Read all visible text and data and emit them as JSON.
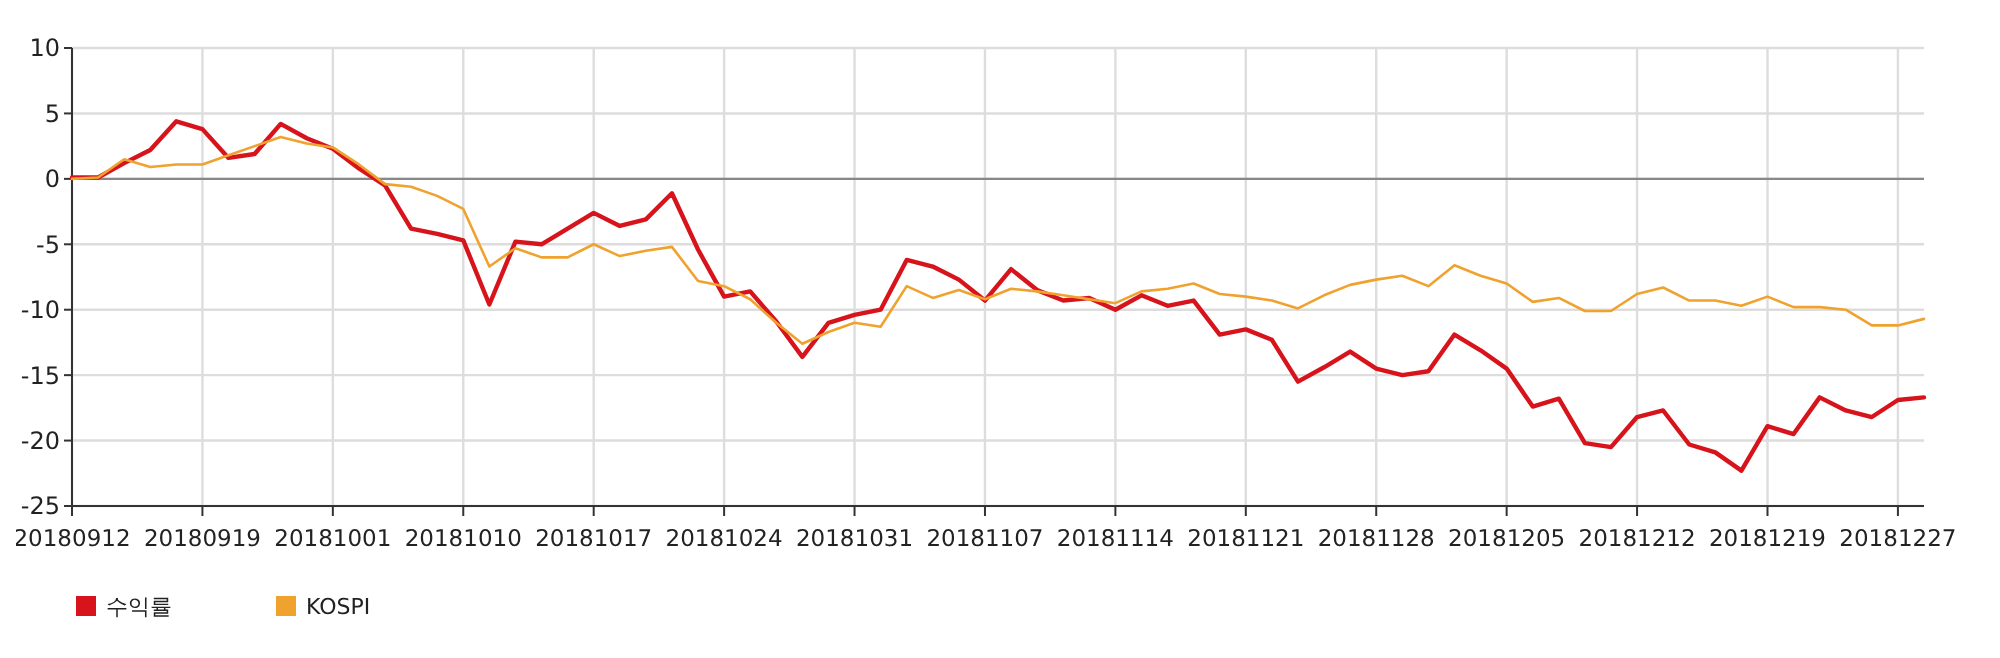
{
  "chart_data": {
    "type": "line",
    "categories": [
      "20180912",
      null,
      null,
      null,
      null,
      "20180919",
      null,
      null,
      null,
      null,
      "20181001",
      null,
      null,
      null,
      null,
      "20181010",
      null,
      null,
      null,
      null,
      "20181017",
      null,
      null,
      null,
      null,
      "20181024",
      null,
      null,
      null,
      null,
      "20181031",
      null,
      null,
      null,
      null,
      "20181107",
      null,
      null,
      null,
      null,
      "20181114",
      null,
      null,
      null,
      null,
      "20181121",
      null,
      null,
      null,
      null,
      "20181128",
      null,
      null,
      null,
      null,
      "20181205",
      null,
      null,
      null,
      null,
      "20181212",
      null,
      null,
      null,
      null,
      "20181219",
      null,
      null,
      null,
      null,
      "20181227",
      null
    ],
    "series": [
      {
        "name": "수익률",
        "color": "#d7141c",
        "values": [
          0.1,
          0.1,
          1.2,
          2.2,
          4.4,
          3.8,
          1.6,
          1.9,
          4.2,
          3.1,
          2.3,
          0.8,
          -0.5,
          -3.8,
          -4.2,
          -4.7,
          -9.6,
          -4.8,
          -5.0,
          -3.8,
          -2.6,
          -3.6,
          -3.1,
          -1.1,
          -5.4,
          -9.0,
          -8.6,
          -10.9,
          -13.6,
          -11.0,
          -10.4,
          -10.0,
          -6.2,
          -6.7,
          -7.7,
          -9.3,
          -6.9,
          -8.5,
          -9.3,
          -9.1,
          -10.0,
          -8.9,
          -9.7,
          -9.3,
          -11.9,
          -11.5,
          -12.3,
          -15.5,
          -14.4,
          -13.2,
          -14.5,
          -15.0,
          -14.7,
          -11.9,
          -13.1,
          -14.5,
          -17.4,
          -16.8,
          -20.2,
          -20.5,
          -18.2,
          -17.7,
          -20.3,
          -20.9,
          -22.3,
          -18.9,
          -19.5,
          -16.7,
          -17.7,
          -18.2,
          -16.9,
          -16.7
        ]
      },
      {
        "name": "KOSPI",
        "color": "#f0a22e",
        "values": [
          0,
          0.1,
          1.5,
          0.9,
          1.1,
          1.1,
          1.8,
          2.5,
          3.2,
          2.7,
          2.4,
          1.1,
          -0.4,
          -0.6,
          -1.3,
          -2.3,
          -6.7,
          -5.3,
          -6.0,
          -6.0,
          -5.0,
          -5.9,
          -5.5,
          -5.2,
          -7.8,
          -8.2,
          -9.2,
          -11.0,
          -12.6,
          -11.7,
          -11.0,
          -11.3,
          -8.2,
          -9.1,
          -8.5,
          -9.2,
          -8.4,
          -8.6,
          -8.9,
          -9.2,
          -9.5,
          -8.6,
          -8.4,
          -8.0,
          -8.8,
          -9.0,
          -9.3,
          -9.9,
          -8.9,
          -8.1,
          -7.7,
          -7.4,
          -8.2,
          -6.6,
          -7.4,
          -8.0,
          -9.4,
          -9.1,
          -10.1,
          -10.1,
          -8.8,
          -8.3,
          -9.3,
          -9.3,
          -9.7,
          -9.0,
          -9.8,
          -9.8,
          -10.0,
          -11.2,
          -11.2,
          -10.7
        ]
      }
    ],
    "ylim": [
      -25,
      10
    ],
    "yticks": [
      -25,
      -20,
      -15,
      -10,
      -5,
      0,
      5,
      10
    ],
    "grid": true,
    "legend": "bottom left",
    "ref_lines": [
      {
        "axis": "y",
        "value": 0,
        "color": "#888888"
      }
    ]
  }
}
